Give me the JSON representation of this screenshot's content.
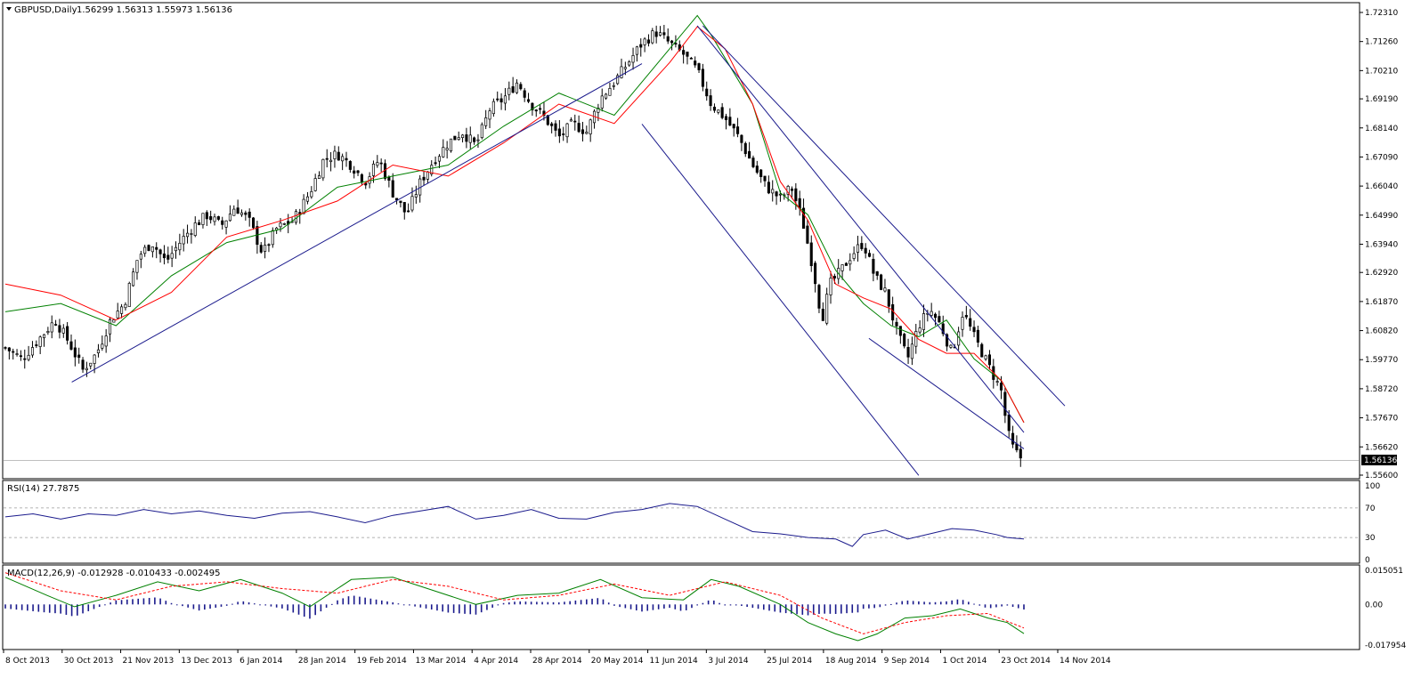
{
  "chart_data": [
    {
      "type": "candlestick",
      "title": "GBPUSD,Daily",
      "ohlc_header": [
        "1.56299",
        "1.56313",
        "1.55973",
        "1.56136"
      ],
      "current_price_label": "1.56136",
      "y_ticks": [
        "1.72310",
        "1.71260",
        "1.70210",
        "1.69190",
        "1.68140",
        "1.67090",
        "1.66040",
        "1.64990",
        "1.63940",
        "1.62920",
        "1.61870",
        "1.60820",
        "1.59770",
        "1.58720",
        "1.57670",
        "1.56620",
        "1.55600"
      ],
      "x_ticks": [
        "8 Oct 2013",
        "30 Oct 2013",
        "21 Nov 2013",
        "13 Dec 2013",
        "6 Jan 2014",
        "28 Jan 2014",
        "19 Feb 2014",
        "13 Mar 2014",
        "4 Apr 2014",
        "28 Apr 2014",
        "20 May 2014",
        "11 Jun 2014",
        "3 Jul 2014",
        "25 Jul 2014",
        "18 Aug 2014",
        "9 Sep 2014",
        "1 Oct 2014",
        "23 Oct 2014",
        "14 Nov 2014"
      ],
      "close_path": [
        [
          0,
          1.602
        ],
        [
          6,
          1.598
        ],
        [
          12,
          1.605
        ],
        [
          18,
          1.612
        ],
        [
          23,
          1.604
        ],
        [
          28,
          1.594
        ],
        [
          33,
          1.6
        ],
        [
          38,
          1.612
        ],
        [
          43,
          1.618
        ],
        [
          48,
          1.635
        ],
        [
          53,
          1.64
        ],
        [
          58,
          1.633
        ],
        [
          63,
          1.64
        ],
        [
          68,
          1.646
        ],
        [
          73,
          1.65
        ],
        [
          78,
          1.646
        ],
        [
          83,
          1.653
        ],
        [
          88,
          1.648
        ],
        [
          93,
          1.636
        ],
        [
          98,
          1.645
        ],
        [
          104,
          1.648
        ],
        [
          110,
          1.658
        ],
        [
          115,
          1.67
        ],
        [
          120,
          1.672
        ],
        [
          125,
          1.668
        ],
        [
          130,
          1.662
        ],
        [
          135,
          1.67
        ],
        [
          140,
          1.658
        ],
        [
          145,
          1.65
        ],
        [
          150,
          1.662
        ],
        [
          155,
          1.67
        ],
        [
          160,
          1.676
        ],
        [
          165,
          1.68
        ],
        [
          170,
          1.675
        ],
        [
          175,
          1.688
        ],
        [
          180,
          1.692
        ],
        [
          185,
          1.698
        ],
        [
          190,
          1.69
        ],
        [
          195,
          1.685
        ],
        [
          200,
          1.678
        ],
        [
          205,
          1.683
        ],
        [
          210,
          1.68
        ],
        [
          215,
          1.692
        ],
        [
          220,
          1.698
        ],
        [
          225,
          1.705
        ],
        [
          230,
          1.712
        ],
        [
          235,
          1.716
        ],
        [
          240,
          1.712
        ],
        [
          245,
          1.708
        ],
        [
          250,
          1.702
        ],
        [
          255,
          1.69
        ],
        [
          260,
          1.685
        ],
        [
          265,
          1.678
        ],
        [
          270,
          1.668
        ],
        [
          275,
          1.66
        ],
        [
          280,
          1.656
        ],
        [
          284,
          1.66
        ],
        [
          288,
          1.648
        ],
        [
          292,
          1.63
        ],
        [
          295,
          1.612
        ],
        [
          298,
          1.625
        ],
        [
          302,
          1.63
        ],
        [
          306,
          1.636
        ],
        [
          310,
          1.64
        ],
        [
          314,
          1.628
        ],
        [
          318,
          1.622
        ],
        [
          322,
          1.608
        ],
        [
          326,
          1.598
        ],
        [
          330,
          1.61
        ],
        [
          334,
          1.616
        ],
        [
          338,
          1.61
        ],
        [
          342,
          1.6
        ],
        [
          346,
          1.615
        ],
        [
          350,
          1.606
        ],
        [
          354,
          1.598
        ],
        [
          357,
          1.592
        ],
        [
          360,
          1.586
        ],
        [
          362,
          1.572
        ],
        [
          364,
          1.566
        ],
        [
          366,
          1.563
        ],
        [
          368,
          1.5614
        ]
      ],
      "sma_red_path": [
        [
          0,
          1.625
        ],
        [
          20,
          1.621
        ],
        [
          40,
          1.612
        ],
        [
          60,
          1.622
        ],
        [
          80,
          1.642
        ],
        [
          100,
          1.648
        ],
        [
          120,
          1.655
        ],
        [
          140,
          1.668
        ],
        [
          160,
          1.664
        ],
        [
          180,
          1.676
        ],
        [
          200,
          1.69
        ],
        [
          220,
          1.683
        ],
        [
          240,
          1.705
        ],
        [
          250,
          1.718
        ],
        [
          260,
          1.71
        ],
        [
          270,
          1.69
        ],
        [
          280,
          1.662
        ],
        [
          290,
          1.648
        ],
        [
          300,
          1.625
        ],
        [
          310,
          1.62
        ],
        [
          320,
          1.616
        ],
        [
          330,
          1.605
        ],
        [
          340,
          1.6
        ],
        [
          350,
          1.6
        ],
        [
          360,
          1.59
        ],
        [
          368,
          1.575
        ]
      ],
      "sma_green_path": [
        [
          0,
          1.615
        ],
        [
          20,
          1.618
        ],
        [
          40,
          1.61
        ],
        [
          60,
          1.628
        ],
        [
          80,
          1.64
        ],
        [
          100,
          1.645
        ],
        [
          120,
          1.66
        ],
        [
          140,
          1.664
        ],
        [
          160,
          1.668
        ],
        [
          180,
          1.682
        ],
        [
          200,
          1.694
        ],
        [
          220,
          1.686
        ],
        [
          240,
          1.71
        ],
        [
          250,
          1.722
        ],
        [
          255,
          1.715
        ],
        [
          270,
          1.69
        ],
        [
          280,
          1.658
        ],
        [
          290,
          1.65
        ],
        [
          300,
          1.63
        ],
        [
          310,
          1.618
        ],
        [
          320,
          1.61
        ],
        [
          330,
          1.606
        ],
        [
          340,
          1.612
        ],
        [
          350,
          1.598
        ],
        [
          360,
          1.59
        ],
        [
          368,
          1.575
        ]
      ],
      "trendlines": [
        {
          "from": [
            24,
            1.5896
          ],
          "to": [
            230,
            1.7046
          ]
        },
        {
          "from": [
            250,
            1.7183
          ],
          "to": [
            368,
            1.5714
          ]
        },
        {
          "from": [
            230,
            1.6828
          ],
          "to": [
            330,
            1.5559
          ]
        },
        {
          "from": [
            312,
            1.6054
          ],
          "to": [
            368,
            1.5655
          ]
        }
      ]
    },
    {
      "type": "line",
      "title": "RSI(14) 27.7875",
      "y_ticks": [
        "100",
        "70",
        "30",
        "0"
      ],
      "levels": [
        70,
        30
      ],
      "ylim": [
        0,
        100
      ],
      "path": [
        [
          0,
          58
        ],
        [
          10,
          62
        ],
        [
          20,
          55
        ],
        [
          30,
          62
        ],
        [
          40,
          60
        ],
        [
          50,
          68
        ],
        [
          60,
          62
        ],
        [
          70,
          66
        ],
        [
          80,
          60
        ],
        [
          90,
          56
        ],
        [
          100,
          63
        ],
        [
          110,
          65
        ],
        [
          120,
          58
        ],
        [
          130,
          50
        ],
        [
          140,
          60
        ],
        [
          150,
          66
        ],
        [
          160,
          72
        ],
        [
          170,
          55
        ],
        [
          180,
          60
        ],
        [
          190,
          68
        ],
        [
          200,
          56
        ],
        [
          210,
          55
        ],
        [
          220,
          64
        ],
        [
          230,
          68
        ],
        [
          240,
          76
        ],
        [
          250,
          72
        ],
        [
          260,
          55
        ],
        [
          270,
          38
        ],
        [
          280,
          35
        ],
        [
          290,
          30
        ],
        [
          300,
          28
        ],
        [
          306,
          18
        ],
        [
          310,
          34
        ],
        [
          318,
          40
        ],
        [
          326,
          28
        ],
        [
          334,
          35
        ],
        [
          342,
          42
        ],
        [
          350,
          40
        ],
        [
          358,
          34
        ],
        [
          362,
          30
        ],
        [
          368,
          28
        ]
      ]
    },
    {
      "type": "bar",
      "title": "MACD(12,26,9) -0.012928 -0.010433 -0.002495",
      "y_ticks": [
        "0.015051",
        "0.00",
        "-0.017954"
      ],
      "ylim": [
        -0.017954,
        0.015051
      ],
      "macd_path": [
        [
          0,
          0.012
        ],
        [
          15,
          0.004
        ],
        [
          25,
          -0.001
        ],
        [
          40,
          0.004
        ],
        [
          55,
          0.01
        ],
        [
          70,
          0.006
        ],
        [
          85,
          0.011
        ],
        [
          100,
          0.005
        ],
        [
          110,
          -0.001
        ],
        [
          125,
          0.011
        ],
        [
          140,
          0.012
        ],
        [
          155,
          0.006
        ],
        [
          170,
          0.0
        ],
        [
          185,
          0.004
        ],
        [
          200,
          0.005
        ],
        [
          215,
          0.011
        ],
        [
          230,
          0.003
        ],
        [
          245,
          0.002
        ],
        [
          255,
          0.011
        ],
        [
          265,
          0.008
        ],
        [
          280,
          0.0
        ],
        [
          290,
          -0.008
        ],
        [
          300,
          -0.013
        ],
        [
          308,
          -0.016
        ],
        [
          315,
          -0.013
        ],
        [
          325,
          -0.006
        ],
        [
          335,
          -0.005
        ],
        [
          345,
          -0.002
        ],
        [
          355,
          -0.006
        ],
        [
          362,
          -0.008
        ],
        [
          368,
          -0.0129
        ]
      ],
      "signal_path": [
        [
          0,
          0.014
        ],
        [
          20,
          0.006
        ],
        [
          40,
          0.002
        ],
        [
          60,
          0.008
        ],
        [
          80,
          0.01
        ],
        [
          100,
          0.007
        ],
        [
          120,
          0.005
        ],
        [
          140,
          0.011
        ],
        [
          160,
          0.008
        ],
        [
          180,
          0.002
        ],
        [
          200,
          0.004
        ],
        [
          220,
          0.009
        ],
        [
          240,
          0.004
        ],
        [
          260,
          0.01
        ],
        [
          280,
          0.004
        ],
        [
          295,
          -0.006
        ],
        [
          310,
          -0.013
        ],
        [
          325,
          -0.008
        ],
        [
          340,
          -0.005
        ],
        [
          355,
          -0.004
        ],
        [
          368,
          -0.0104
        ]
      ]
    }
  ]
}
